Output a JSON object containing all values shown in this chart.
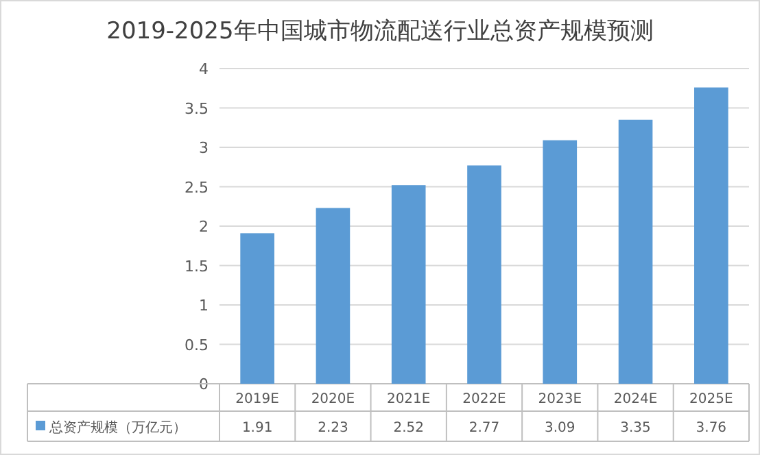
{
  "chart_data": {
    "type": "bar",
    "title": "2019-2025年中国城市物流配送行业总资产规模预测",
    "categories": [
      "2019E",
      "2020E",
      "2021E",
      "2022E",
      "2023E",
      "2024E",
      "2025E"
    ],
    "series": [
      {
        "name": "总资产规模（万亿元）",
        "color": "#5b9bd5",
        "values": [
          1.91,
          2.23,
          2.52,
          2.77,
          3.09,
          3.35,
          3.76
        ]
      }
    ],
    "ylim": [
      0,
      4
    ],
    "yticks": [
      0,
      0.5,
      1,
      1.5,
      2,
      2.5,
      3,
      3.5,
      4
    ],
    "grid": "y",
    "data_labels": true,
    "legend": "bottom left"
  }
}
